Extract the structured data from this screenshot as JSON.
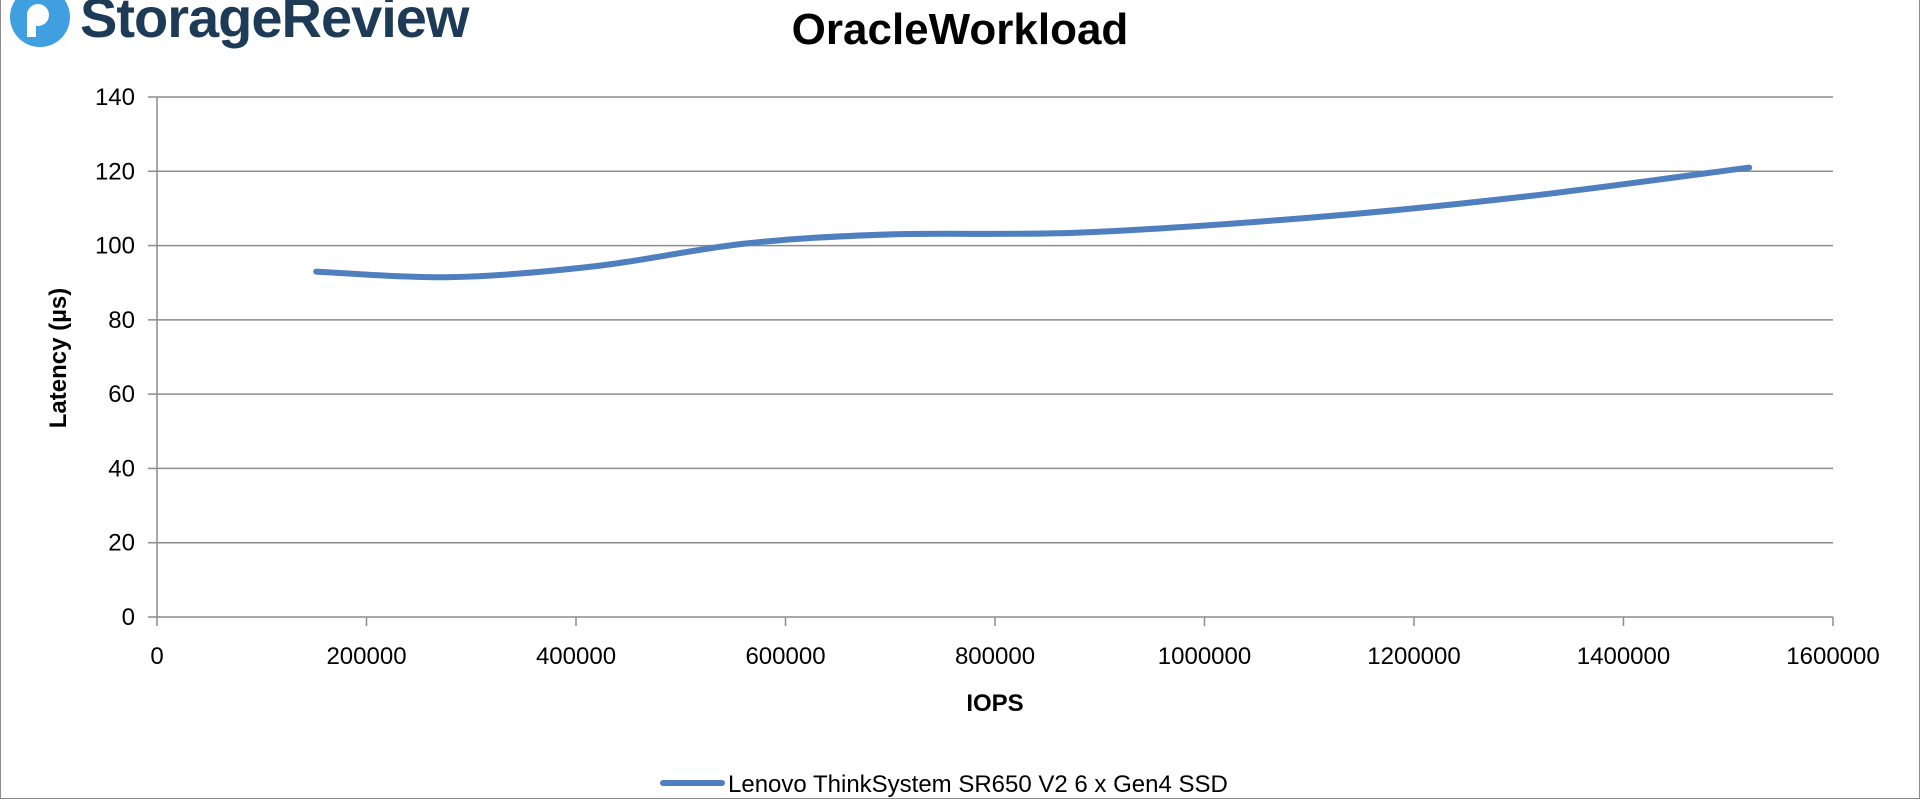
{
  "logo": {
    "text": "StorageReview",
    "icon": "storagereview-logo-icon",
    "color": "#1d3b57",
    "accent": "#3f9fe0"
  },
  "chart_data": {
    "type": "line",
    "title": "OracleWorkload",
    "xlabel": "IOPS",
    "ylabel": "Latency (µs)",
    "xlim": [
      0,
      1600000
    ],
    "ylim": [
      0,
      140
    ],
    "xticks": [
      0,
      200000,
      400000,
      600000,
      800000,
      1000000,
      1200000,
      1400000,
      1600000
    ],
    "xtick_labels": [
      "0",
      "200000",
      "400000",
      "600000",
      "800000",
      "1000000",
      "1200000",
      "1400000",
      "1600000"
    ],
    "yticks": [
      0,
      20,
      40,
      60,
      80,
      100,
      120,
      140
    ],
    "ytick_labels": [
      "0",
      "20",
      "40",
      "60",
      "80",
      "100",
      "120",
      "140"
    ],
    "grid": true,
    "legend_position": "bottom-center",
    "series": [
      {
        "name": "Lenovo ThinkSystem SR650 V2 6 x Gen4 SSD",
        "color": "#4f7fbf",
        "x": [
          152000,
          280000,
          420000,
          560000,
          700000,
          880000,
          1100000,
          1300000,
          1520000
        ],
        "y": [
          93,
          91.5,
          94.5,
          100.5,
          103,
          103.5,
          107.5,
          113,
          121
        ]
      }
    ]
  }
}
